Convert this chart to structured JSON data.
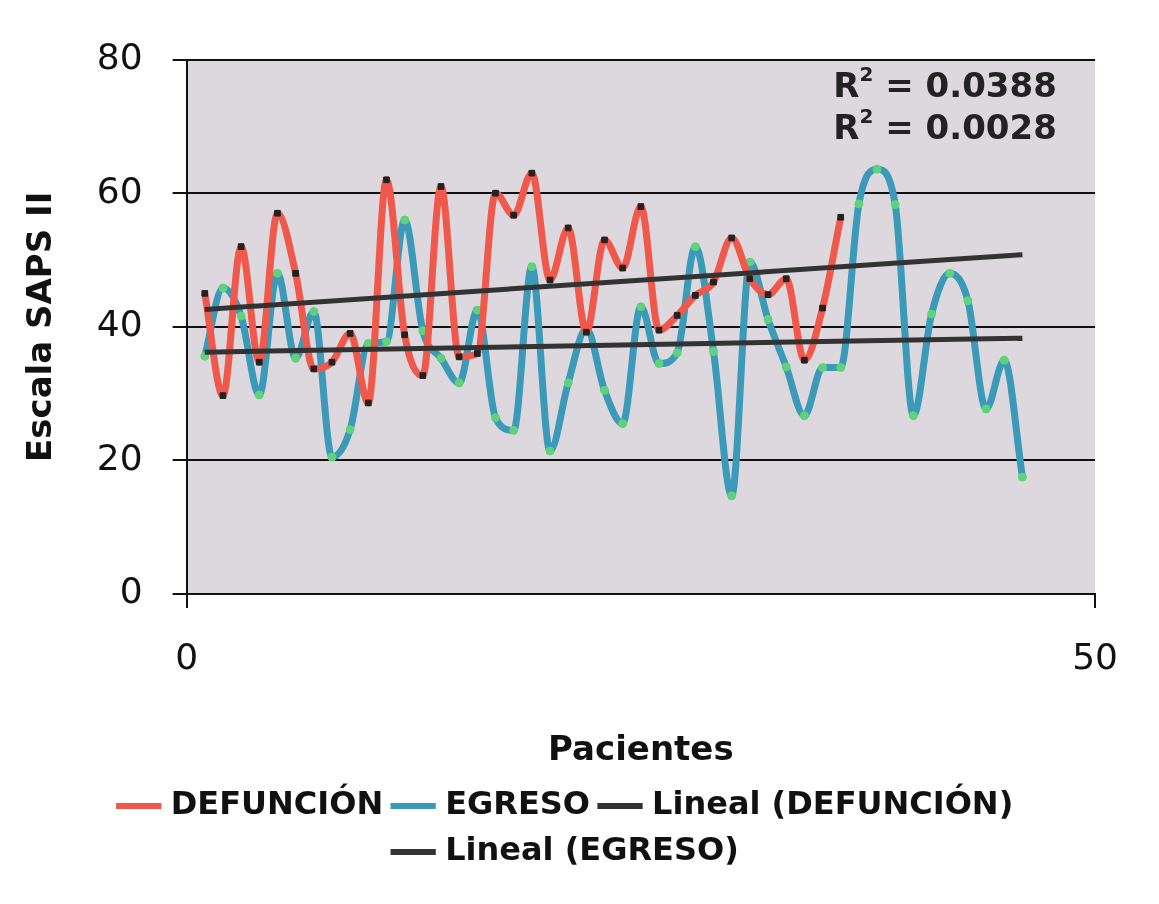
{
  "chart_data": {
    "type": "line",
    "xlabel": "Pacientes",
    "ylabel": "Escala SAPS II",
    "xlim": [
      0,
      50
    ],
    "xticks": [
      0,
      50
    ],
    "ylim": [
      0,
      80
    ],
    "yticks": [
      0,
      20,
      40,
      60,
      80
    ],
    "grid": "y",
    "legend": "bottom",
    "series": [
      {
        "name": "DEFUNCIÓN",
        "color": "#f0584c",
        "marker": "square",
        "x": [
          1,
          2,
          3,
          4,
          5,
          6,
          7,
          8,
          9,
          10,
          11,
          12,
          13,
          14,
          15,
          16,
          17,
          18,
          19,
          20,
          21,
          22,
          23,
          24,
          25,
          26,
          27,
          28,
          29,
          30,
          31,
          32,
          33,
          34,
          35,
          36
        ],
        "values": [
          45,
          29.7,
          52,
          34.7,
          57,
          48,
          33.7,
          34.7,
          39,
          28.6,
          62,
          38.8,
          32.7,
          61,
          35.5,
          36,
          60,
          56.7,
          63,
          47,
          54.8,
          39.2,
          53,
          48.8,
          58,
          39.5,
          41.7,
          44.7,
          46.7,
          53.3,
          47.2,
          44.8,
          47.2,
          35,
          42.8,
          56.4
        ]
      },
      {
        "name": "EGRESO",
        "color": "#3a9ab8",
        "marker": "circle",
        "x": [
          1,
          2,
          3,
          4,
          5,
          6,
          7,
          8,
          9,
          10,
          11,
          12,
          13,
          14,
          15,
          16,
          17,
          18,
          19,
          20,
          21,
          22,
          23,
          24,
          25,
          26,
          27,
          28,
          29,
          30,
          31,
          32,
          33,
          34,
          35,
          36,
          37,
          38,
          39,
          40,
          41,
          42,
          43,
          44,
          45,
          46
        ],
        "values": [
          35.6,
          45.8,
          41.6,
          29.8,
          48,
          35.3,
          42.3,
          20.5,
          24.6,
          37.5,
          37.8,
          56,
          39.4,
          35.3,
          31.6,
          42.5,
          26.4,
          24.5,
          49,
          21.4,
          31.6,
          39.7,
          30.5,
          25.5,
          43,
          34.5,
          36.1,
          52,
          36.3,
          14.7,
          49.7,
          41.1,
          34,
          26.7,
          33.9,
          33.9,
          58.4,
          63.6,
          58.3,
          26.7,
          41.9,
          48,
          43.9,
          27.7,
          35,
          17.5
        ]
      },
      {
        "name": "Lineal (DEFUNCIÓN)",
        "type": "line",
        "color": "#333333",
        "marker": "none",
        "x": [
          1,
          46
        ],
        "values": [
          42.6,
          50.8
        ]
      },
      {
        "name": "Lineal (EGRESO)",
        "type": "line",
        "color": "#333333",
        "marker": "none",
        "x": [
          1,
          46
        ],
        "values": [
          36.2,
          38.3
        ]
      }
    ],
    "annotations": [
      "R$^{2}$ = 0.0388",
      "R$^{2}$ = 0.0028"
    ]
  }
}
